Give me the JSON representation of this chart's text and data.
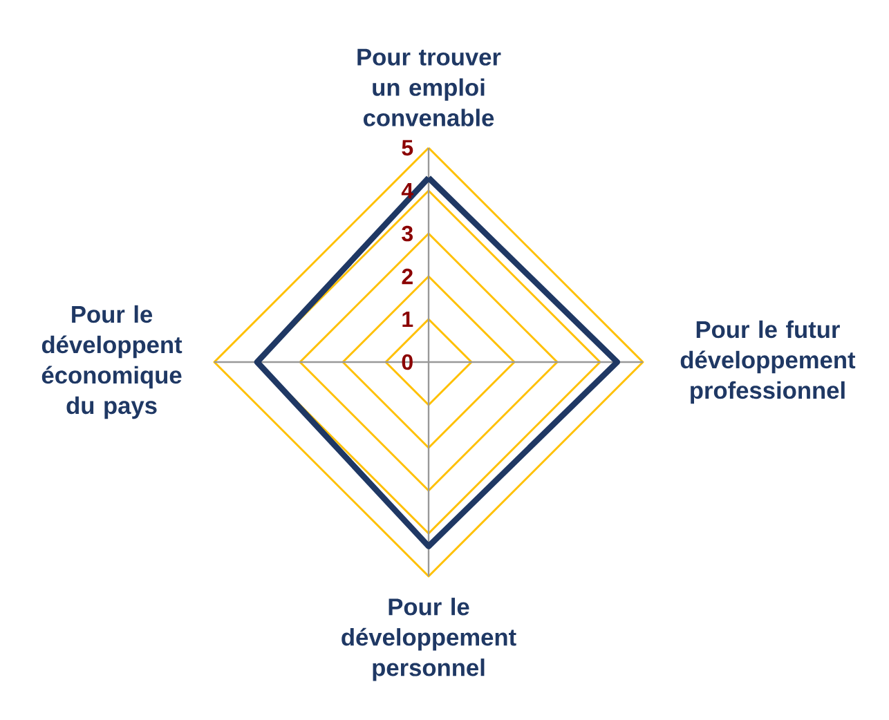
{
  "chart_data": {
    "type": "radar",
    "categories": [
      "Pour trouver un emploi convenable",
      "Pour le futur développement professionnel",
      "Pour le développement personnel",
      "Pour le développent économique du pays"
    ],
    "series": [
      {
        "color": "#1f3864",
        "values": [
          4.3,
          4.4,
          4.3,
          4.0
        ]
      }
    ],
    "ylim": [
      0,
      5
    ],
    "yticks": [
      0,
      1,
      2,
      3,
      4,
      5
    ],
    "grid": true
  }
}
